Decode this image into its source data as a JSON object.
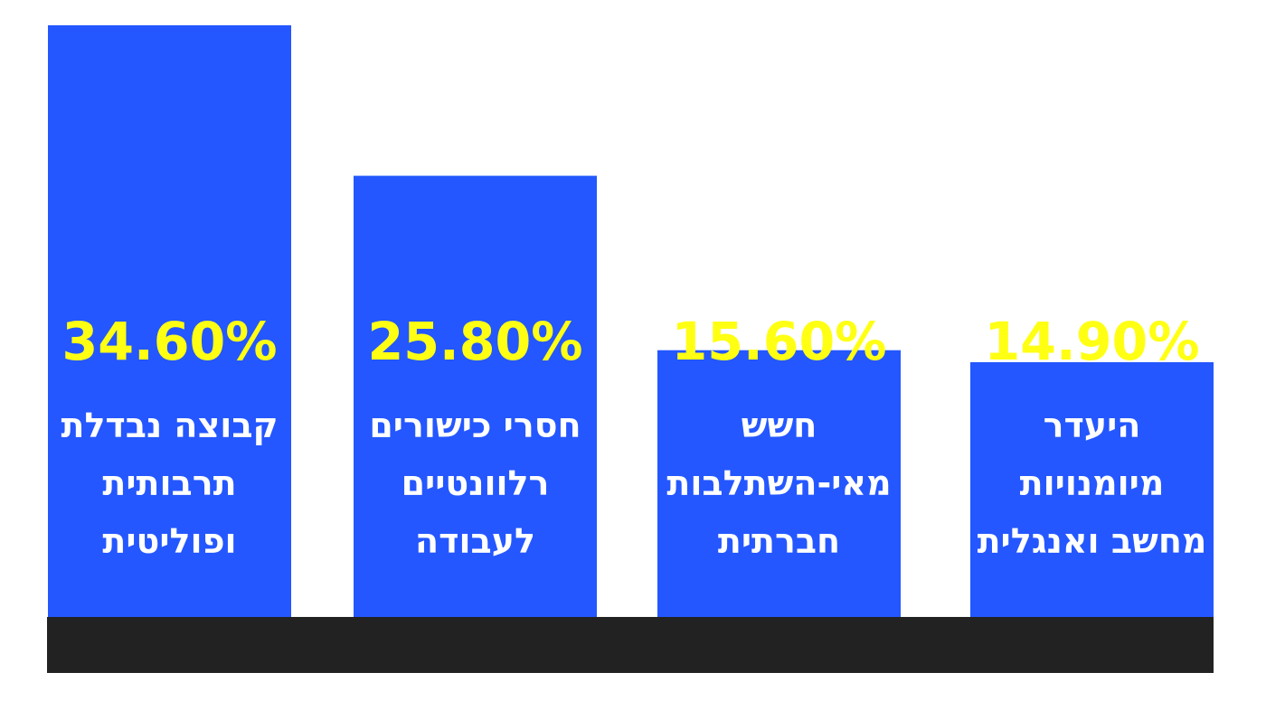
{
  "chart_data": {
    "type": "bar",
    "categories": [
      "קבוצה נבדלת תרבותית ופוליטית",
      "חסרי כישורים רלוונטיים לעבודה",
      "חשש מאי-השתלבות חברתית",
      "היעדר מיומנויות מחשב ואנגלית"
    ],
    "category_lines": [
      [
        "קבוצה נבדלת",
        "תרבותית",
        "ופוליטית"
      ],
      [
        "חסרי כישורים",
        "רלוונטיים",
        "לעבודה"
      ],
      [
        "חשש",
        "מאי-השתלבות",
        "חברתית"
      ],
      [
        "היעדר",
        "מיומנויות",
        "מחשב ואנגלית"
      ]
    ],
    "values": [
      34.6,
      25.8,
      15.6,
      14.9
    ],
    "value_labels": [
      "34.60%",
      "25.80%",
      "15.60%",
      "14.90%"
    ],
    "ylim": [
      0,
      34.6
    ],
    "title": "",
    "xlabel": "",
    "ylabel": "",
    "grid": false,
    "legend": "none"
  },
  "colors": {
    "bar": "#2457ff",
    "value_text": "#ffff14",
    "label_text": "#ffffff",
    "baseline": "#222222",
    "background": "#ffffff"
  }
}
